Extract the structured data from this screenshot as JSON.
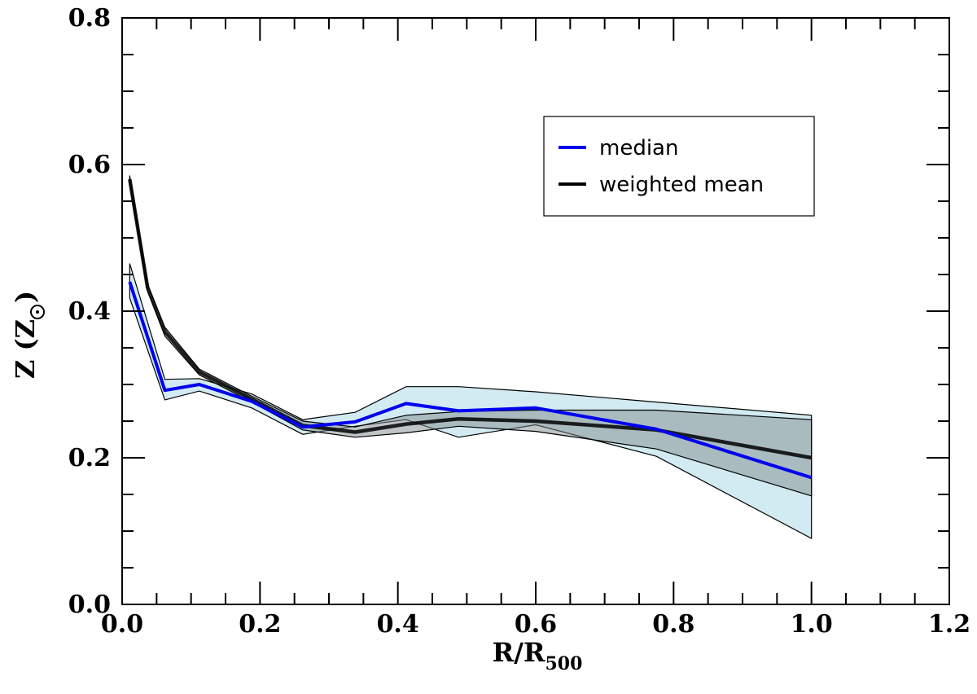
{
  "chart_data": {
    "type": "line",
    "xlabel": "R/R",
    "xlabel_sub": "500",
    "ylabel": "Z (Z",
    "ylabel_close": ")",
    "xlim": [
      0.0,
      1.2
    ],
    "ylim": [
      0.0,
      0.8
    ],
    "xticks": [
      "0.0",
      "0.2",
      "0.4",
      "0.6",
      "0.8",
      "1.0",
      "1.2"
    ],
    "yticks": [
      "0.0",
      "0.2",
      "0.4",
      "0.6",
      "0.8"
    ],
    "x_tick_values": [
      0.0,
      0.2,
      0.4,
      0.6,
      0.8,
      1.0,
      1.2
    ],
    "y_tick_values": [
      0.0,
      0.2,
      0.4,
      0.6,
      0.8
    ],
    "x_minor_step": 0.05,
    "y_minor_step": 0.05,
    "grid": false,
    "legend_position": "top-right",
    "colors": {
      "median": "#0000ee",
      "weighted_mean": "#000000",
      "median_band": "#add8e6",
      "mean_band": "#7f8c8d"
    },
    "series": [
      {
        "name": "median",
        "color": "#0000ee",
        "x": [
          0.011,
          0.062,
          0.112,
          0.188,
          0.262,
          0.338,
          0.412,
          0.488,
          0.6,
          0.775,
          1.0
        ],
        "y": [
          0.44,
          0.292,
          0.3,
          0.277,
          0.242,
          0.249,
          0.274,
          0.264,
          0.268,
          0.239,
          0.173
        ],
        "lower": [
          0.418,
          0.279,
          0.291,
          0.268,
          0.232,
          0.243,
          0.252,
          0.228,
          0.245,
          0.202,
          0.09
        ],
        "upper": [
          0.465,
          0.307,
          0.308,
          0.287,
          0.252,
          0.262,
          0.297,
          0.297,
          0.29,
          0.276,
          0.258
        ]
      },
      {
        "name": "weighted mean",
        "color": "#000000",
        "x": [
          0.011,
          0.037,
          0.062,
          0.112,
          0.188,
          0.262,
          0.338,
          0.412,
          0.488,
          0.6,
          0.775,
          1.0
        ],
        "y": [
          0.58,
          0.432,
          0.372,
          0.317,
          0.28,
          0.244,
          0.235,
          0.246,
          0.253,
          0.25,
          0.238,
          0.2
        ],
        "lower": [
          0.575,
          0.427,
          0.366,
          0.313,
          0.276,
          0.238,
          0.228,
          0.234,
          0.243,
          0.236,
          0.212,
          0.148
        ],
        "upper": [
          0.585,
          0.437,
          0.378,
          0.321,
          0.284,
          0.25,
          0.242,
          0.258,
          0.263,
          0.265,
          0.265,
          0.252
        ]
      }
    ]
  }
}
